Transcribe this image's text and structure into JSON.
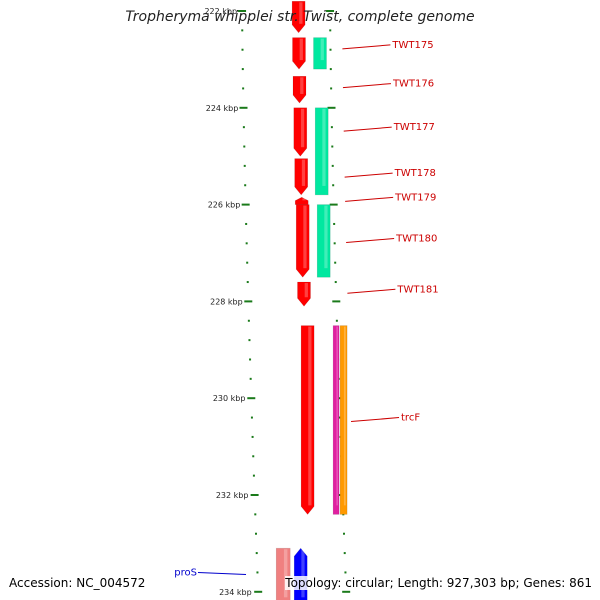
{
  "title": "Tropheryma whipplei str. Twist, complete genome",
  "accession": "Accession: NC_004572",
  "summary": "Topology: circular; Length: 927,303 bp; Genes: 861",
  "colors": {
    "cds_red": "#ff0000",
    "cds_dark": "#b00000",
    "teal": "#00e8a0",
    "magenta": "#e020a0",
    "orange": "#ff9900",
    "blue": "#0000ff",
    "pink": "#f08080",
    "backbone": "#888888",
    "tick": "#1a7a1a",
    "label_red": "#cc0000",
    "label_blue": "#0000cc"
  },
  "scale": {
    "start_kbp": 222,
    "end_kbp": 234.1,
    "labels": [
      "222 kbp",
      "224 kbp",
      "226 kbp",
      "228 kbp",
      "230 kbp",
      "232 kbp",
      "234 kbp"
    ]
  },
  "gene_labels": [
    {
      "name": "TWT175",
      "kbp": 222.7,
      "strand": "red"
    },
    {
      "name": "TWT176",
      "kbp": 223.5,
      "strand": "red"
    },
    {
      "name": "TWT177",
      "kbp": 224.4,
      "strand": "red"
    },
    {
      "name": "TWT178",
      "kbp": 225.35,
      "strand": "red"
    },
    {
      "name": "TWT179",
      "kbp": 225.85,
      "strand": "red"
    },
    {
      "name": "TWT180",
      "kbp": 226.7,
      "strand": "red"
    },
    {
      "name": "TWT181",
      "kbp": 227.75,
      "strand": "red"
    },
    {
      "name": "trcF",
      "kbp": 230.4,
      "strand": "red"
    },
    {
      "name": "proS",
      "kbp": 233.6,
      "strand": "blue"
    }
  ],
  "features": [
    {
      "track": "red",
      "start": 221.8,
      "end": 222.45,
      "arrow": "down"
    },
    {
      "track": "red",
      "start": 222.55,
      "end": 223.2,
      "arrow": "down"
    },
    {
      "track": "red",
      "start": 223.35,
      "end": 223.9,
      "arrow": "down"
    },
    {
      "track": "red",
      "start": 224.0,
      "end": 225.0,
      "arrow": "down"
    },
    {
      "track": "red",
      "start": 225.05,
      "end": 225.8,
      "arrow": "down"
    },
    {
      "track": "red",
      "start": 225.85,
      "end": 226.0,
      "arrow": "up"
    },
    {
      "track": "red",
      "start": 226.0,
      "end": 227.5,
      "arrow": "down"
    },
    {
      "track": "red",
      "start": 227.6,
      "end": 228.1,
      "arrow": "down"
    },
    {
      "track": "red",
      "start": 228.5,
      "end": 232.4,
      "arrow": "down"
    },
    {
      "track": "teal",
      "start": 222.55,
      "end": 223.2,
      "arrow": "none"
    },
    {
      "track": "teal",
      "start": 224.0,
      "end": 225.8,
      "arrow": "none"
    },
    {
      "track": "teal",
      "start": 226.0,
      "end": 227.5,
      "arrow": "none"
    },
    {
      "track": "magenta",
      "start": 228.5,
      "end": 232.4,
      "arrow": "none"
    },
    {
      "track": "orange",
      "start": 228.5,
      "end": 232.4,
      "arrow": "none"
    },
    {
      "track": "pink",
      "start": 233.1,
      "end": 234.3,
      "arrow": "none"
    },
    {
      "track": "blue",
      "start": 233.1,
      "end": 234.3,
      "arrow": "up"
    }
  ]
}
